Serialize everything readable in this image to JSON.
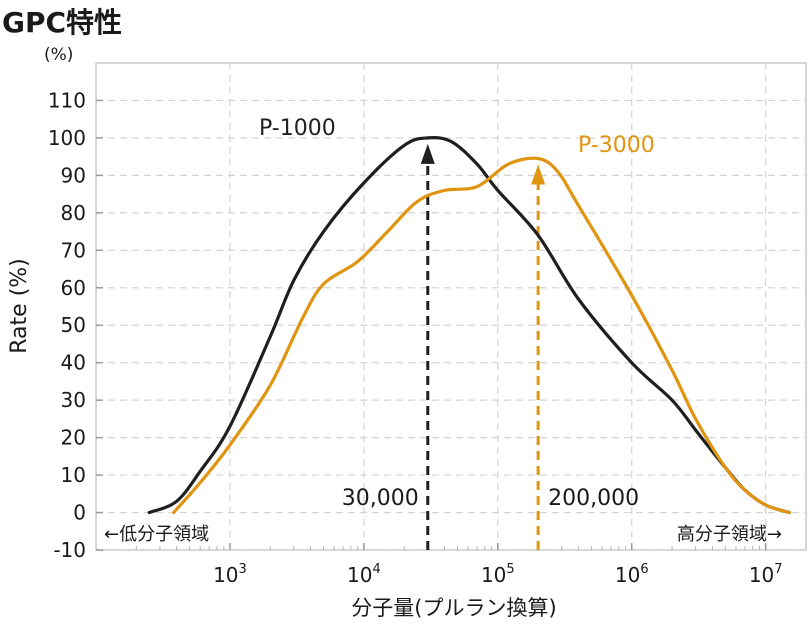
{
  "chart_data": {
    "type": "line",
    "title": "GPC特性",
    "ylabel": "Rate (%)",
    "y_unit": "(%)",
    "xlabel": "分子量(プルラン換算)",
    "xscale": "log",
    "xlim": [
      100,
      20000000
    ],
    "ylim": [
      -10,
      120
    ],
    "grid": true,
    "y_ticks": [
      -10,
      0,
      10,
      20,
      30,
      40,
      50,
      60,
      70,
      80,
      90,
      100,
      110
    ],
    "x_ticks": [
      {
        "value": 1000,
        "base": "10",
        "exp": "3"
      },
      {
        "value": 10000,
        "base": "10",
        "exp": "4"
      },
      {
        "value": 100000,
        "base": "10",
        "exp": "5"
      },
      {
        "value": 1000000,
        "base": "10",
        "exp": "6"
      },
      {
        "value": 10000000,
        "base": "10",
        "exp": "7"
      }
    ],
    "series": [
      {
        "name": "P-1000",
        "color": "#1f1f1f",
        "points": [
          [
            250,
            0
          ],
          [
            400,
            3
          ],
          [
            600,
            11
          ],
          [
            1000,
            23
          ],
          [
            2000,
            47
          ],
          [
            3000,
            62
          ],
          [
            5000,
            75
          ],
          [
            10000,
            88
          ],
          [
            20000,
            98
          ],
          [
            30000,
            100
          ],
          [
            45000,
            99
          ],
          [
            70000,
            93
          ],
          [
            100000,
            86
          ],
          [
            200000,
            74
          ],
          [
            400000,
            57
          ],
          [
            1000000,
            40
          ],
          [
            2000000,
            30
          ],
          [
            3000000,
            22
          ],
          [
            5000000,
            12
          ],
          [
            7000000,
            6
          ],
          [
            10000000,
            2
          ],
          [
            15000000,
            0
          ]
        ]
      },
      {
        "name": "P-3000",
        "color": "#e09410",
        "points": [
          [
            380,
            0
          ],
          [
            600,
            8
          ],
          [
            1000,
            18
          ],
          [
            2000,
            34
          ],
          [
            3500,
            52
          ],
          [
            5000,
            61
          ],
          [
            9000,
            67
          ],
          [
            15000,
            75
          ],
          [
            25000,
            83
          ],
          [
            40000,
            86
          ],
          [
            70000,
            87
          ],
          [
            120000,
            93
          ],
          [
            200000,
            94.5
          ],
          [
            280000,
            91
          ],
          [
            400000,
            82
          ],
          [
            1000000,
            58
          ],
          [
            2000000,
            38
          ],
          [
            3000000,
            25
          ],
          [
            5000000,
            12
          ],
          [
            7000000,
            6
          ],
          [
            10000000,
            2
          ],
          [
            15000000,
            0
          ]
        ]
      }
    ],
    "annotations": [
      {
        "x": 30000,
        "y_peak": 100,
        "label": "30,000",
        "color": "#1f1f1f"
      },
      {
        "x": 200000,
        "y_peak": 94.5,
        "label": "200,000",
        "color": "#e09410"
      }
    ],
    "region_labels": {
      "low": "←低分子領域",
      "high": "高分子領域→"
    }
  }
}
